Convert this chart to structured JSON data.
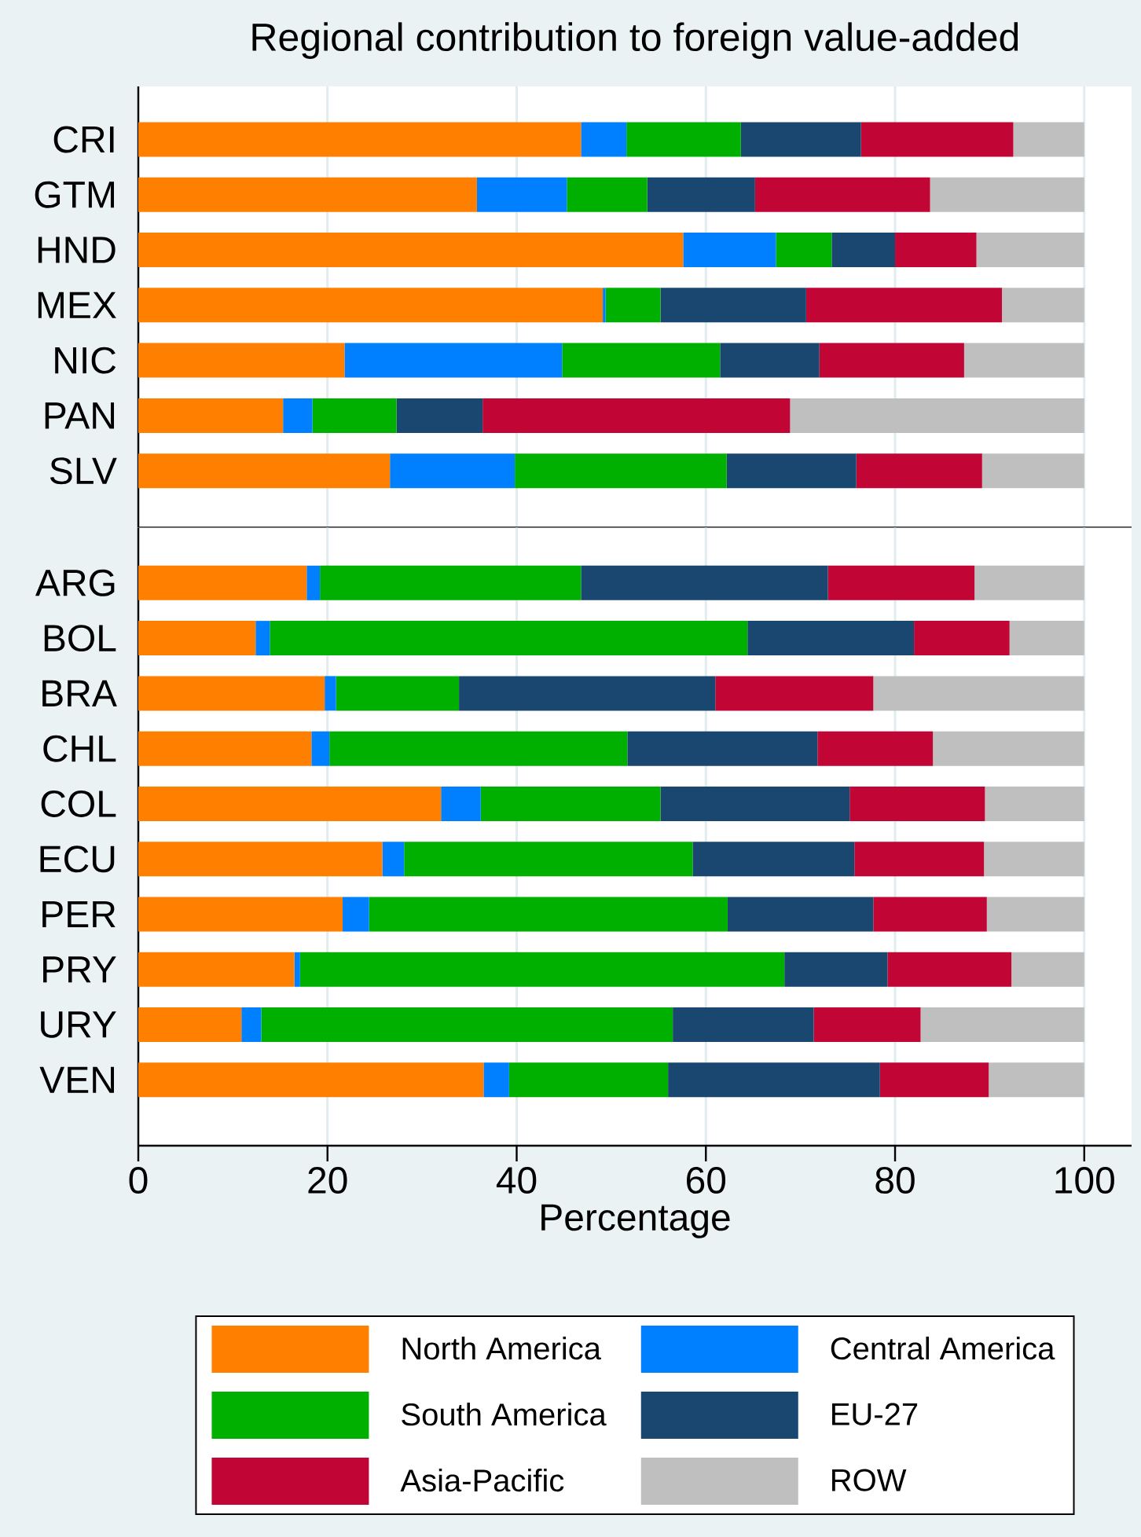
{
  "chart_data": [
    {
      "type": "bar",
      "orientation": "horizontal",
      "stacked": true,
      "title": "Regional contribution to foreign value-added",
      "categories": [
        "CRI",
        "GTM",
        "HND",
        "MEX",
        "NIC",
        "PAN",
        "SLV"
      ],
      "series": [
        {
          "color": "#ff7f00",
          "values": [
            46.8,
            35.8,
            57.6,
            49.1,
            21.8,
            15.3,
            26.6
          ]
        },
        {
          "color": "#0080ff",
          "values": [
            4.8,
            9.5,
            9.8,
            0.3,
            23.0,
            3.1,
            13.2
          ]
        },
        {
          "color": "#00b000",
          "values": [
            12.1,
            8.5,
            5.9,
            5.8,
            16.7,
            8.9,
            22.4
          ]
        },
        {
          "color": "#1a476f",
          "values": [
            12.7,
            11.4,
            6.7,
            15.4,
            10.5,
            9.1,
            13.7
          ]
        },
        {
          "color": "#c10534",
          "values": [
            16.1,
            18.5,
            8.6,
            20.7,
            15.3,
            32.5,
            13.3
          ]
        },
        {
          "color": "#bfbfbf",
          "values": [
            7.5,
            16.3,
            11.4,
            8.7,
            12.7,
            31.1,
            10.8
          ]
        }
      ],
      "xlim": [
        0,
        105
      ],
      "xticks": [
        0,
        20,
        40,
        60,
        80,
        100
      ],
      "tick_labels": "y",
      "grid": "x"
    },
    {
      "type": "bar",
      "orientation": "horizontal",
      "stacked": true,
      "xlabel": "Percentage",
      "categories": [
        "ARG",
        "BOL",
        "BRA",
        "CHL",
        "COL",
        "ECU",
        "PER",
        "PRY",
        "URY",
        "VEN"
      ],
      "series": [
        {
          "name": "North America",
          "color": "#ff7f00",
          "values": [
            17.8,
            12.4,
            19.7,
            18.3,
            32.0,
            25.8,
            21.6,
            16.5,
            10.9,
            36.5
          ]
        },
        {
          "name": "Central America",
          "color": "#0080ff",
          "values": [
            1.4,
            1.5,
            1.2,
            1.9,
            4.2,
            2.3,
            2.8,
            0.6,
            2.1,
            2.7
          ]
        },
        {
          "name": "South America",
          "color": "#00b000",
          "values": [
            27.6,
            50.5,
            13.0,
            31.5,
            19.0,
            30.5,
            37.9,
            51.2,
            43.5,
            16.8
          ]
        },
        {
          "name": "EU-27",
          "color": "#1a476f",
          "values": [
            26.1,
            17.6,
            27.1,
            20.1,
            20.0,
            17.1,
            15.4,
            10.9,
            14.9,
            22.4
          ]
        },
        {
          "name": "Asia-Pacific",
          "color": "#c10534",
          "values": [
            15.5,
            10.1,
            16.7,
            12.2,
            14.3,
            13.7,
            12.0,
            13.1,
            11.3,
            11.5
          ]
        },
        {
          "name": "ROW",
          "color": "#bfbfbf",
          "values": [
            11.6,
            7.9,
            22.3,
            16.0,
            10.5,
            10.6,
            10.3,
            7.7,
            17.3,
            10.1
          ]
        }
      ],
      "xlim": [
        0,
        105
      ],
      "xticks": [
        0,
        20,
        40,
        60,
        80,
        100
      ],
      "grid": "x",
      "legend": "bottom"
    }
  ]
}
